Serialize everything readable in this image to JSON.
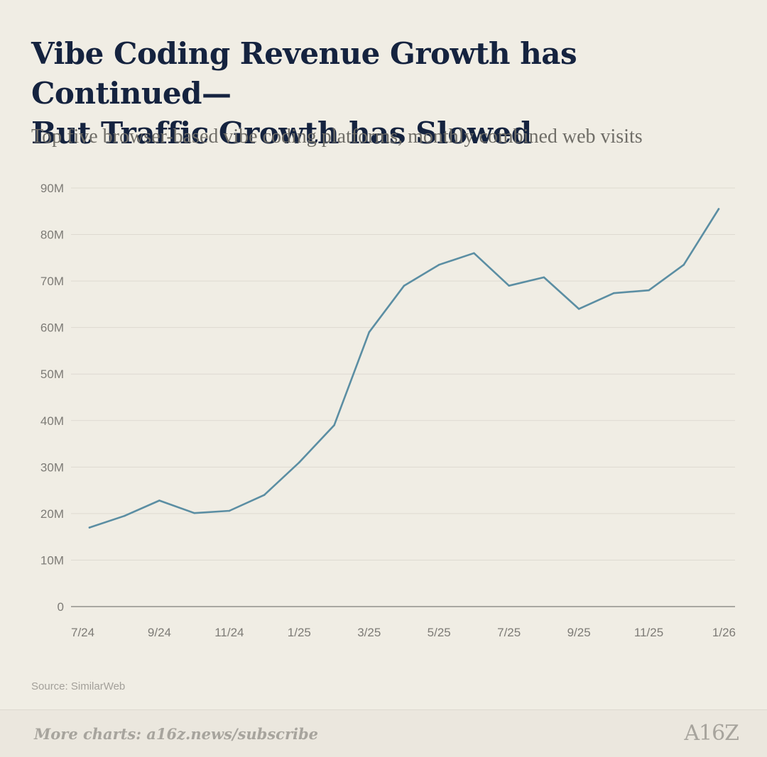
{
  "header": {
    "title_line1": "Vibe Coding Revenue Growth has Continued—",
    "title_line2": "But Traffic Growth has Slowed",
    "subtitle": "Top five browser-based vibe coding platforms, monthly combined web visits"
  },
  "footer": {
    "source": "Source: SimilarWeb",
    "cta": "More charts: a16z.news/subscribe",
    "logo": "A16Z"
  },
  "colors": {
    "line": "#5b8ea3",
    "grid": "#dedad1",
    "axis": "#a9a7a1",
    "tick_text": "#7d7b76"
  },
  "chart_data": {
    "type": "line",
    "x": [
      "7/24",
      "8/24",
      "9/24",
      "10/24",
      "11/24",
      "12/24",
      "1/25",
      "2/25",
      "3/25",
      "4/25",
      "5/25",
      "6/25",
      "7/25",
      "8/25",
      "9/25",
      "10/25",
      "11/25",
      "12/25",
      "1/26"
    ],
    "x_tick_labels": [
      "7/24",
      "9/24",
      "11/24",
      "1/25",
      "3/25",
      "5/25",
      "7/25",
      "9/25",
      "11/25",
      "1/26"
    ],
    "series": [
      {
        "values": [
          17.0,
          19.5,
          22.8,
          20.1,
          20.6,
          24.0,
          31.0,
          39.0,
          59.0,
          69.0,
          73.5,
          76.0,
          69.0,
          70.8,
          64.0,
          67.4,
          68.0,
          73.5,
          85.5
        ]
      }
    ],
    "y_unit": "M",
    "ylim": [
      0,
      90
    ],
    "y_ticks": [
      0,
      10,
      20,
      30,
      40,
      50,
      60,
      70,
      80,
      90
    ],
    "y_tick_labels": [
      "0",
      "10M",
      "20M",
      "30M",
      "40M",
      "50M",
      "60M",
      "70M",
      "80M",
      "90M"
    ],
    "grid": true,
    "legend": "none"
  }
}
